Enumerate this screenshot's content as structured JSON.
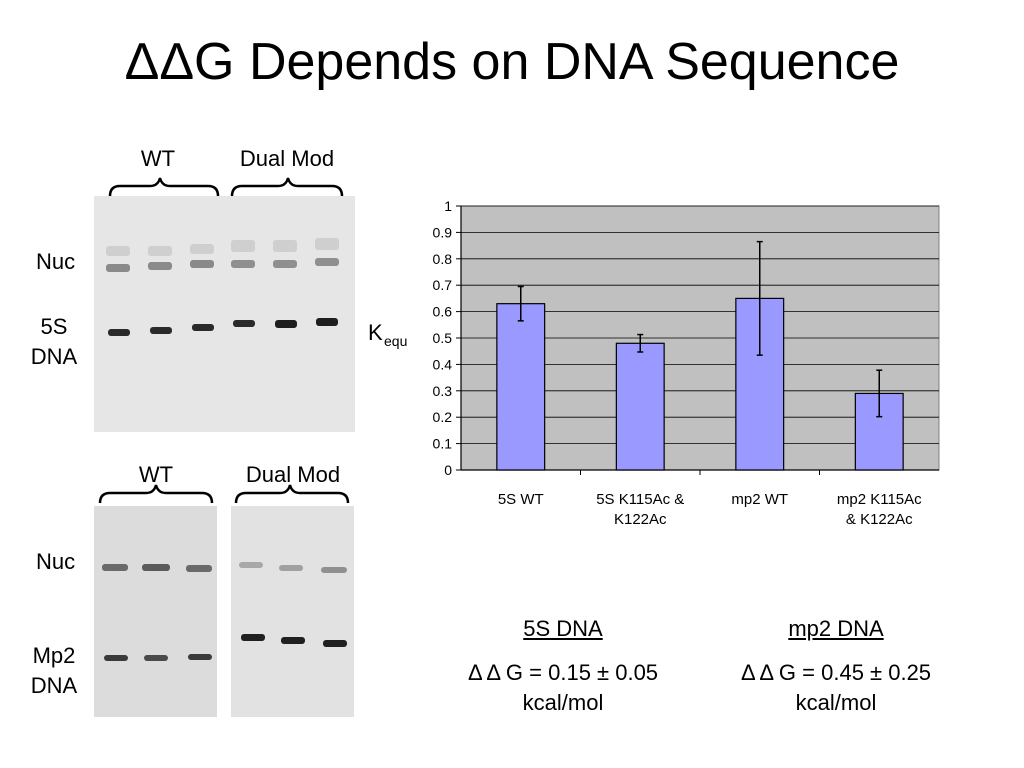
{
  "slide": {
    "title": "ΔΔG Depends on DNA Sequence"
  },
  "gel_top": {
    "group_labels": [
      "WT",
      "Dual Mod"
    ],
    "row_labels": {
      "nuc": "Nuc",
      "dna_line1": "5S",
      "dna_line2": "DNA"
    }
  },
  "gel_bottom": {
    "group_labels": [
      "WT",
      "Dual Mod"
    ],
    "row_labels": {
      "nuc": "Nuc",
      "dna_line1": "Mp2",
      "dna_line2": "DNA"
    }
  },
  "chart_data": {
    "type": "bar",
    "title": "",
    "xlabel": "",
    "ylabel": "K",
    "ylabel_sub": "equ",
    "ylim": [
      0,
      1
    ],
    "yticks": [
      "0",
      "0.1",
      "0.2",
      "0.3",
      "0.4",
      "0.5",
      "0.6",
      "0.7",
      "0.8",
      "0.9",
      "1"
    ],
    "grid": true,
    "categories": [
      [
        "5S WT"
      ],
      [
        "5S K115Ac &",
        "K122Ac"
      ],
      [
        "mp2 WT"
      ],
      [
        "mp2 K115Ac",
        "& K122Ac"
      ]
    ],
    "values": [
      0.63,
      0.48,
      0.65,
      0.29
    ],
    "errors": [
      0.065,
      0.033,
      0.215,
      0.088
    ],
    "bar_color": "#9999ff",
    "plot_bg": "#c0c0c0"
  },
  "results": [
    {
      "heading": "5S DNA",
      "line1": "Δ Δ G = 0.15 ± 0.05",
      "line2": "kcal/mol"
    },
    {
      "heading": "mp2 DNA",
      "line1": "Δ Δ G = 0.45 ± 0.25",
      "line2": "kcal/mol"
    }
  ]
}
